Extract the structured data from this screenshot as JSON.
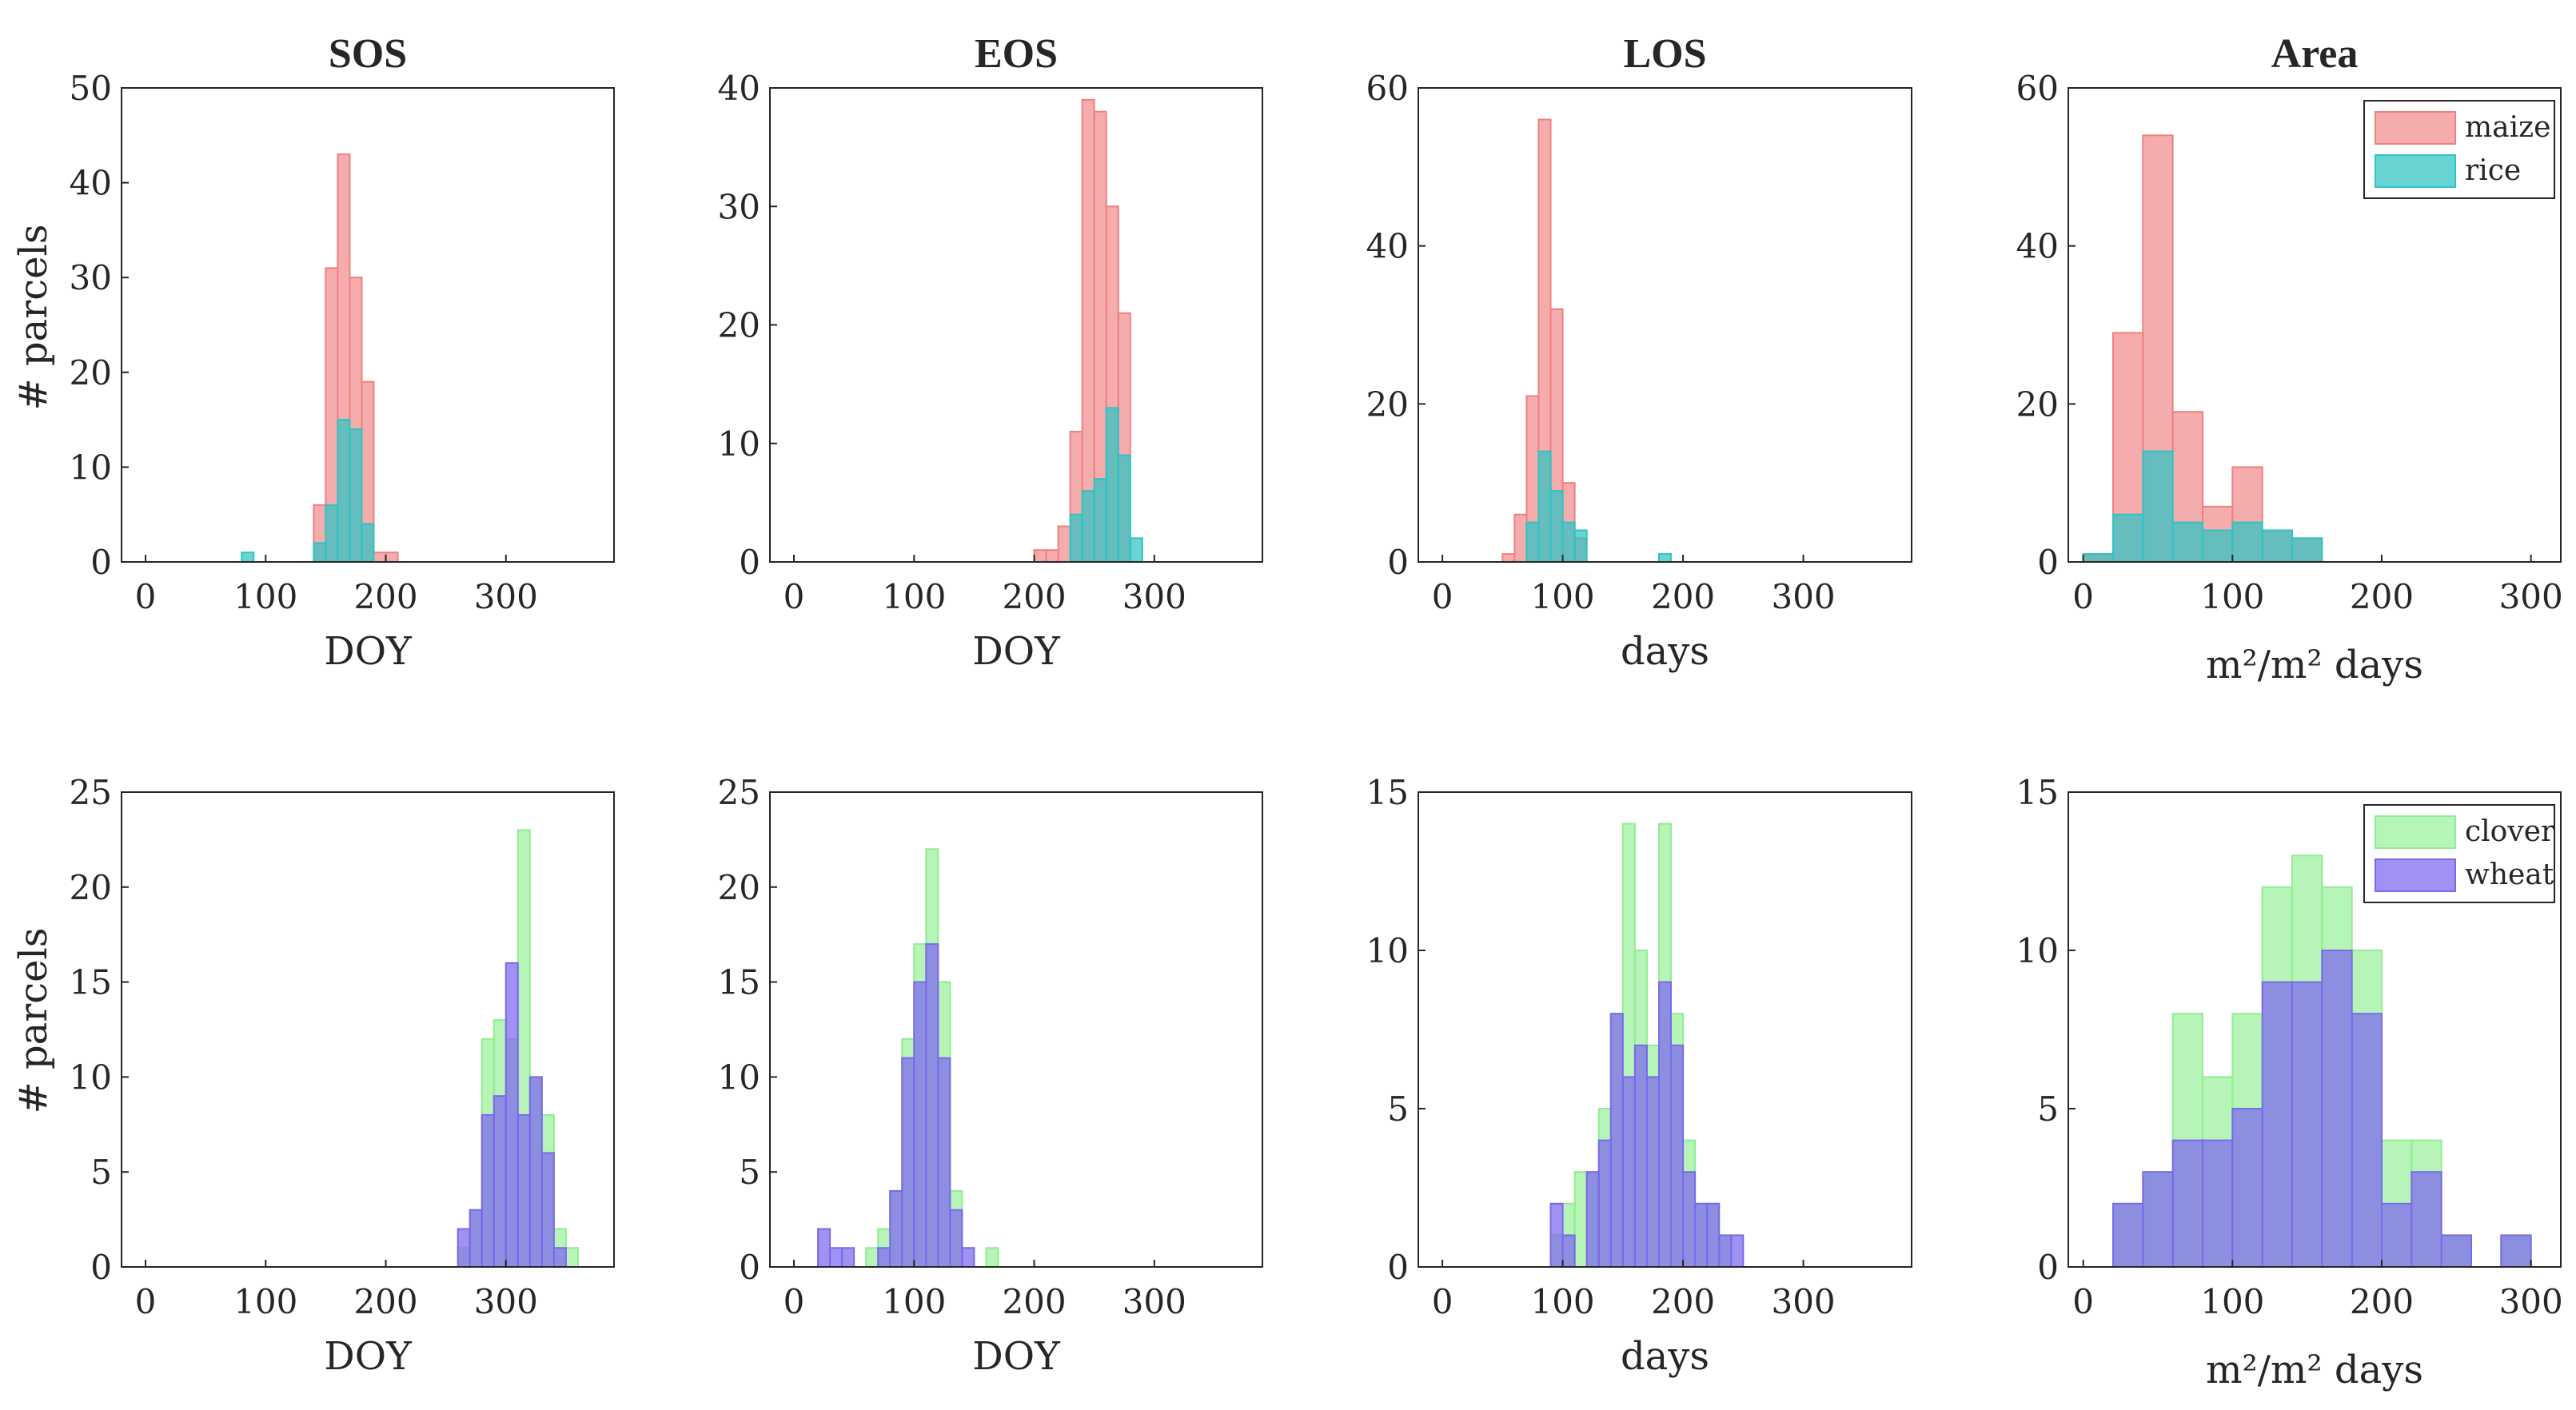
{
  "figure": {
    "ylabel_top": "# parcels",
    "ylabel_bottom": "# parcels"
  },
  "colors": {
    "maize": "#f08080",
    "rice": "#2ec4c4",
    "clover": "#90ee90",
    "wheat": "#7b68ee"
  },
  "chart_data": [
    {
      "id": "sos-top",
      "type": "bar",
      "title": "SOS",
      "xlabel": "DOY",
      "ylabel": "# parcels",
      "xlim": [
        -20,
        390
      ],
      "ylim": [
        0,
        50
      ],
      "xticks": [
        0,
        100,
        200,
        300
      ],
      "yticks": [
        0,
        10,
        20,
        30,
        40,
        50
      ],
      "series": [
        {
          "name": "maize",
          "color": "#f08080",
          "bins": [
            [
              140,
              150,
              6
            ],
            [
              150,
              160,
              31
            ],
            [
              160,
              170,
              43
            ],
            [
              170,
              180,
              30
            ],
            [
              180,
              190,
              19
            ],
            [
              190,
              200,
              1
            ],
            [
              200,
              210,
              1
            ]
          ]
        },
        {
          "name": "rice",
          "color": "#2ec4c4",
          "bins": [
            [
              80,
              90,
              1
            ],
            [
              140,
              150,
              2
            ],
            [
              150,
              160,
              6
            ],
            [
              160,
              170,
              15
            ],
            [
              170,
              180,
              14
            ],
            [
              180,
              190,
              4
            ]
          ]
        }
      ]
    },
    {
      "id": "eos-top",
      "type": "bar",
      "title": "EOS",
      "xlabel": "DOY",
      "ylabel": "",
      "xlim": [
        -20,
        390
      ],
      "ylim": [
        0,
        40
      ],
      "xticks": [
        0,
        100,
        200,
        300
      ],
      "yticks": [
        0,
        10,
        20,
        30,
        40
      ],
      "series": [
        {
          "name": "maize",
          "color": "#f08080",
          "bins": [
            [
              200,
              210,
              1
            ],
            [
              210,
              220,
              1
            ],
            [
              220,
              230,
              3
            ],
            [
              230,
              240,
              11
            ],
            [
              240,
              250,
              39
            ],
            [
              250,
              260,
              38
            ],
            [
              260,
              270,
              30
            ],
            [
              270,
              280,
              21
            ]
          ]
        },
        {
          "name": "rice",
          "color": "#2ec4c4",
          "bins": [
            [
              230,
              240,
              4
            ],
            [
              240,
              250,
              6
            ],
            [
              250,
              260,
              7
            ],
            [
              260,
              270,
              13
            ],
            [
              270,
              280,
              9
            ],
            [
              280,
              290,
              2
            ]
          ]
        }
      ]
    },
    {
      "id": "los-top",
      "type": "bar",
      "title": "LOS",
      "xlabel": "days",
      "ylabel": "",
      "xlim": [
        -20,
        390
      ],
      "ylim": [
        0,
        60
      ],
      "xticks": [
        0,
        100,
        200,
        300
      ],
      "yticks": [
        0,
        20,
        40,
        60
      ],
      "series": [
        {
          "name": "maize",
          "color": "#f08080",
          "bins": [
            [
              50,
              60,
              1
            ],
            [
              60,
              70,
              6
            ],
            [
              70,
              80,
              21
            ],
            [
              80,
              90,
              56
            ],
            [
              90,
              100,
              32
            ],
            [
              100,
              110,
              10
            ],
            [
              110,
              120,
              3
            ]
          ]
        },
        {
          "name": "rice",
          "color": "#2ec4c4",
          "bins": [
            [
              70,
              80,
              5
            ],
            [
              80,
              90,
              14
            ],
            [
              90,
              100,
              9
            ],
            [
              100,
              110,
              5
            ],
            [
              110,
              120,
              4
            ],
            [
              180,
              190,
              1
            ]
          ]
        }
      ]
    },
    {
      "id": "area-top",
      "type": "bar",
      "title": "Area",
      "xlabel": "m²/m² days",
      "ylabel": "",
      "xlim": [
        -10,
        320
      ],
      "ylim": [
        0,
        60
      ],
      "xticks": [
        0,
        100,
        200,
        300
      ],
      "yticks": [
        0,
        20,
        40,
        60
      ],
      "legend": "top-right",
      "series": [
        {
          "name": "maize",
          "color": "#f08080",
          "bins": [
            [
              0,
              20,
              1
            ],
            [
              20,
              40,
              29
            ],
            [
              40,
              60,
              54
            ],
            [
              60,
              80,
              19
            ],
            [
              80,
              100,
              7
            ],
            [
              100,
              120,
              12
            ],
            [
              120,
              140,
              4
            ],
            [
              140,
              160,
              3
            ]
          ]
        },
        {
          "name": "rice",
          "color": "#2ec4c4",
          "bins": [
            [
              0,
              20,
              1
            ],
            [
              20,
              40,
              6
            ],
            [
              40,
              60,
              14
            ],
            [
              60,
              80,
              5
            ],
            [
              80,
              100,
              4
            ],
            [
              100,
              120,
              5
            ],
            [
              120,
              140,
              4
            ],
            [
              140,
              160,
              3
            ]
          ]
        }
      ]
    },
    {
      "id": "sos-bottom",
      "type": "bar",
      "title": "",
      "xlabel": "DOY",
      "ylabel": "# parcels",
      "xlim": [
        -20,
        390
      ],
      "ylim": [
        0,
        25
      ],
      "xticks": [
        0,
        100,
        200,
        300
      ],
      "yticks": [
        0,
        5,
        10,
        15,
        20,
        25
      ],
      "series": [
        {
          "name": "clover",
          "color": "#90ee90",
          "bins": [
            [
              260,
              270,
              1
            ],
            [
              270,
              280,
              3
            ],
            [
              280,
              290,
              12
            ],
            [
              290,
              300,
              13
            ],
            [
              300,
              310,
              12
            ],
            [
              310,
              320,
              23
            ],
            [
              320,
              330,
              10
            ],
            [
              330,
              340,
              8
            ],
            [
              340,
              350,
              2
            ],
            [
              350,
              360,
              1
            ]
          ]
        },
        {
          "name": "wheat",
          "color": "#7b68ee",
          "bins": [
            [
              260,
              270,
              2
            ],
            [
              270,
              280,
              3
            ],
            [
              280,
              290,
              8
            ],
            [
              290,
              300,
              9
            ],
            [
              300,
              310,
              16
            ],
            [
              310,
              320,
              8
            ],
            [
              320,
              330,
              10
            ],
            [
              330,
              340,
              6
            ],
            [
              340,
              350,
              1
            ]
          ]
        }
      ]
    },
    {
      "id": "eos-bottom",
      "type": "bar",
      "title": "",
      "xlabel": "DOY",
      "ylabel": "",
      "xlim": [
        -20,
        390
      ],
      "ylim": [
        0,
        25
      ],
      "xticks": [
        0,
        100,
        200,
        300
      ],
      "yticks": [
        0,
        5,
        10,
        15,
        20,
        25
      ],
      "series": [
        {
          "name": "clover",
          "color": "#90ee90",
          "bins": [
            [
              60,
              70,
              1
            ],
            [
              70,
              80,
              2
            ],
            [
              80,
              90,
              4
            ],
            [
              90,
              100,
              12
            ],
            [
              100,
              110,
              17
            ],
            [
              110,
              120,
              22
            ],
            [
              120,
              130,
              15
            ],
            [
              130,
              140,
              4
            ],
            [
              160,
              170,
              1
            ]
          ]
        },
        {
          "name": "wheat",
          "color": "#7b68ee",
          "bins": [
            [
              20,
              30,
              2
            ],
            [
              30,
              40,
              1
            ],
            [
              40,
              50,
              1
            ],
            [
              70,
              80,
              1
            ],
            [
              80,
              90,
              4
            ],
            [
              90,
              100,
              11
            ],
            [
              100,
              110,
              15
            ],
            [
              110,
              120,
              17
            ],
            [
              120,
              130,
              11
            ],
            [
              130,
              140,
              3
            ],
            [
              140,
              150,
              1
            ]
          ]
        }
      ]
    },
    {
      "id": "los-bottom",
      "type": "bar",
      "title": "",
      "xlabel": "days",
      "ylabel": "",
      "xlim": [
        -20,
        390
      ],
      "ylim": [
        0,
        15
      ],
      "xticks": [
        0,
        100,
        200,
        300
      ],
      "yticks": [
        0,
        5,
        10,
        15
      ],
      "series": [
        {
          "name": "clover",
          "color": "#90ee90",
          "bins": [
            [
              90,
              100,
              1
            ],
            [
              100,
              110,
              2
            ],
            [
              110,
              120,
              3
            ],
            [
              120,
              130,
              3
            ],
            [
              130,
              140,
              5
            ],
            [
              140,
              150,
              8
            ],
            [
              150,
              160,
              14
            ],
            [
              160,
              170,
              10
            ],
            [
              170,
              180,
              7
            ],
            [
              180,
              190,
              14
            ],
            [
              190,
              200,
              8
            ],
            [
              200,
              210,
              4
            ],
            [
              210,
              220,
              2
            ],
            [
              220,
              230,
              2
            ],
            [
              230,
              240,
              1
            ]
          ]
        },
        {
          "name": "wheat",
          "color": "#7b68ee",
          "bins": [
            [
              90,
              100,
              2
            ],
            [
              100,
              110,
              1
            ],
            [
              120,
              130,
              3
            ],
            [
              130,
              140,
              4
            ],
            [
              140,
              150,
              8
            ],
            [
              150,
              160,
              6
            ],
            [
              160,
              170,
              7
            ],
            [
              170,
              180,
              6
            ],
            [
              180,
              190,
              9
            ],
            [
              190,
              200,
              7
            ],
            [
              200,
              210,
              3
            ],
            [
              210,
              220,
              2
            ],
            [
              220,
              230,
              2
            ],
            [
              230,
              240,
              1
            ],
            [
              240,
              250,
              1
            ]
          ]
        }
      ]
    },
    {
      "id": "area-bottom",
      "type": "bar",
      "title": "",
      "xlabel": "m²/m² days",
      "ylabel": "",
      "xlim": [
        -10,
        320
      ],
      "ylim": [
        0,
        15
      ],
      "xticks": [
        0,
        100,
        200,
        300
      ],
      "yticks": [
        0,
        5,
        10,
        15
      ],
      "legend": "top-right",
      "series": [
        {
          "name": "clover",
          "color": "#90ee90",
          "bins": [
            [
              20,
              40,
              2
            ],
            [
              40,
              60,
              3
            ],
            [
              60,
              80,
              8
            ],
            [
              80,
              100,
              6
            ],
            [
              100,
              120,
              8
            ],
            [
              120,
              140,
              12
            ],
            [
              140,
              160,
              13
            ],
            [
              160,
              180,
              12
            ],
            [
              180,
              200,
              10
            ],
            [
              200,
              220,
              4
            ],
            [
              220,
              240,
              4
            ],
            [
              240,
              260,
              1
            ],
            [
              280,
              300,
              1
            ]
          ]
        },
        {
          "name": "wheat",
          "color": "#7b68ee",
          "bins": [
            [
              20,
              40,
              2
            ],
            [
              40,
              60,
              3
            ],
            [
              60,
              80,
              4
            ],
            [
              80,
              100,
              4
            ],
            [
              100,
              120,
              5
            ],
            [
              120,
              140,
              9
            ],
            [
              140,
              160,
              9
            ],
            [
              160,
              180,
              10
            ],
            [
              180,
              200,
              8
            ],
            [
              200,
              220,
              2
            ],
            [
              220,
              240,
              3
            ],
            [
              240,
              260,
              1
            ],
            [
              280,
              300,
              1
            ]
          ]
        }
      ]
    }
  ]
}
